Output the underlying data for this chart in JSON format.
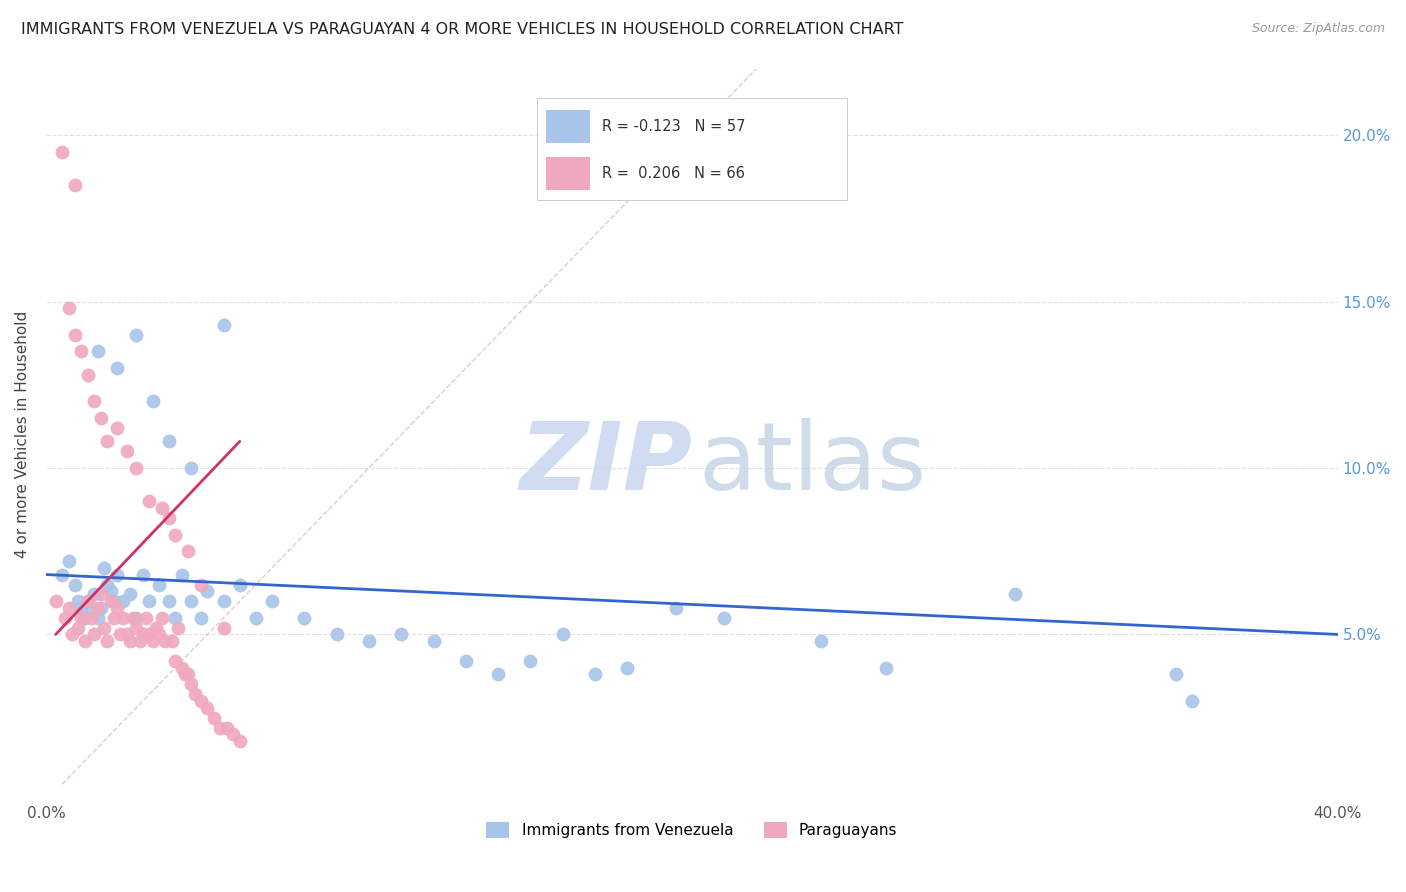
{
  "title": "IMMIGRANTS FROM VENEZUELA VS PARAGUAYAN 4 OR MORE VEHICLES IN HOUSEHOLD CORRELATION CHART",
  "source": "Source: ZipAtlas.com",
  "ylabel": "4 or more Vehicles in Household",
  "xlim": [
    0.0,
    0.4
  ],
  "ylim": [
    0.0,
    0.22
  ],
  "xticks": [
    0.0,
    0.05,
    0.1,
    0.15,
    0.2,
    0.25,
    0.3,
    0.35,
    0.4
  ],
  "yticks": [
    0.0,
    0.05,
    0.1,
    0.15,
    0.2
  ],
  "background_color": "#ffffff",
  "grid_color": "#e0e0e0",
  "blue_color": "#a8c4e8",
  "pink_color": "#f0a8bc",
  "blue_line_color": "#3366cc",
  "pink_line_color": "#cc3366",
  "dashed_line_color": "#ccaaaa",
  "legend_blue_R": "-0.123",
  "legend_blue_N": "57",
  "legend_pink_R": "0.206",
  "legend_pink_N": "66",
  "legend_series1": "Immigrants from Venezuela",
  "legend_series2": "Paraguayans",
  "blue_scatter_x": [
    0.005,
    0.007,
    0.009,
    0.01,
    0.011,
    0.012,
    0.013,
    0.014,
    0.015,
    0.016,
    0.017,
    0.018,
    0.019,
    0.02,
    0.021,
    0.022,
    0.024,
    0.026,
    0.028,
    0.03,
    0.032,
    0.035,
    0.038,
    0.04,
    0.042,
    0.045,
    0.048,
    0.05,
    0.055,
    0.06,
    0.065,
    0.07,
    0.08,
    0.09,
    0.1,
    0.11,
    0.12,
    0.13,
    0.14,
    0.15,
    0.16,
    0.17,
    0.18,
    0.195,
    0.21,
    0.24,
    0.26,
    0.3,
    0.35,
    0.355,
    0.016,
    0.022,
    0.028,
    0.033,
    0.038,
    0.045,
    0.055
  ],
  "blue_scatter_y": [
    0.068,
    0.072,
    0.065,
    0.06,
    0.058,
    0.055,
    0.06,
    0.058,
    0.062,
    0.055,
    0.058,
    0.07,
    0.065,
    0.063,
    0.06,
    0.068,
    0.06,
    0.062,
    0.055,
    0.068,
    0.06,
    0.065,
    0.06,
    0.055,
    0.068,
    0.06,
    0.055,
    0.063,
    0.06,
    0.065,
    0.055,
    0.06,
    0.055,
    0.05,
    0.048,
    0.05,
    0.048,
    0.042,
    0.038,
    0.042,
    0.05,
    0.038,
    0.04,
    0.058,
    0.055,
    0.048,
    0.04,
    0.062,
    0.038,
    0.03,
    0.135,
    0.13,
    0.14,
    0.12,
    0.108,
    0.1,
    0.143
  ],
  "pink_scatter_x": [
    0.003,
    0.005,
    0.006,
    0.007,
    0.008,
    0.009,
    0.01,
    0.011,
    0.012,
    0.013,
    0.014,
    0.015,
    0.016,
    0.017,
    0.018,
    0.019,
    0.02,
    0.021,
    0.022,
    0.023,
    0.024,
    0.025,
    0.026,
    0.027,
    0.028,
    0.029,
    0.03,
    0.031,
    0.032,
    0.033,
    0.034,
    0.035,
    0.036,
    0.037,
    0.038,
    0.039,
    0.04,
    0.041,
    0.042,
    0.043,
    0.044,
    0.045,
    0.046,
    0.048,
    0.05,
    0.052,
    0.054,
    0.056,
    0.058,
    0.06,
    0.007,
    0.009,
    0.011,
    0.013,
    0.015,
    0.017,
    0.019,
    0.022,
    0.025,
    0.028,
    0.032,
    0.036,
    0.04,
    0.044,
    0.048,
    0.055
  ],
  "pink_scatter_y": [
    0.06,
    0.195,
    0.055,
    0.058,
    0.05,
    0.185,
    0.052,
    0.055,
    0.048,
    0.06,
    0.055,
    0.05,
    0.058,
    0.062,
    0.052,
    0.048,
    0.06,
    0.055,
    0.058,
    0.05,
    0.055,
    0.05,
    0.048,
    0.055,
    0.052,
    0.048,
    0.05,
    0.055,
    0.05,
    0.048,
    0.052,
    0.05,
    0.055,
    0.048,
    0.085,
    0.048,
    0.042,
    0.052,
    0.04,
    0.038,
    0.038,
    0.035,
    0.032,
    0.03,
    0.028,
    0.025,
    0.022,
    0.022,
    0.02,
    0.018,
    0.148,
    0.14,
    0.135,
    0.128,
    0.12,
    0.115,
    0.108,
    0.112,
    0.105,
    0.1,
    0.09,
    0.088,
    0.08,
    0.075,
    0.065,
    0.052
  ],
  "blue_line_x": [
    0.0,
    0.4
  ],
  "blue_line_y": [
    0.068,
    0.05
  ],
  "pink_line_x": [
    0.003,
    0.06
  ],
  "pink_line_y": [
    0.05,
    0.108
  ],
  "dashed_line_x": [
    0.005,
    0.22
  ],
  "dashed_line_y": [
    0.005,
    0.22
  ]
}
